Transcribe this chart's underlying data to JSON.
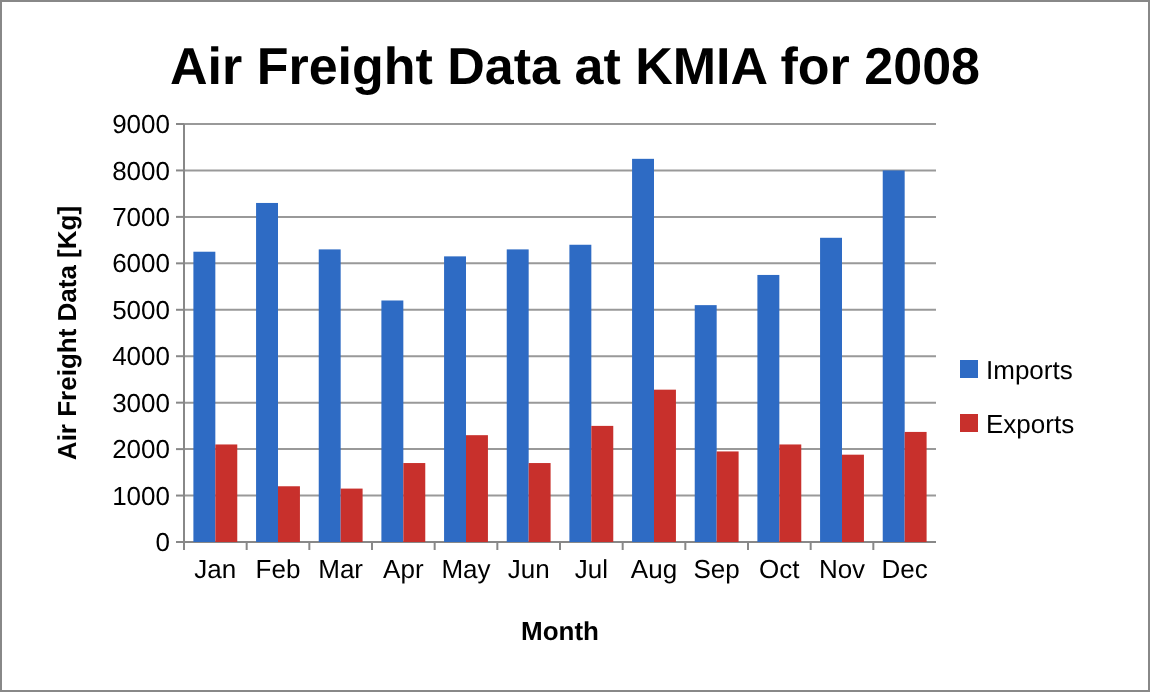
{
  "chart_data": {
    "type": "bar",
    "title": "Air Freight Data at KMIA for 2008",
    "xlabel": "Month",
    "ylabel": "Air Freight Data [Kg]",
    "categories": [
      "Jan",
      "Feb",
      "Mar",
      "Apr",
      "May",
      "Jun",
      "Jul",
      "Aug",
      "Sep",
      "Oct",
      "Nov",
      "Dec"
    ],
    "series": [
      {
        "name": "Imports",
        "color": "#2e6bc4",
        "values": [
          6250,
          7300,
          6300,
          5200,
          6150,
          6300,
          6400,
          8250,
          5100,
          5750,
          6550,
          8000
        ]
      },
      {
        "name": "Exports",
        "color": "#c8302c",
        "values": [
          2100,
          1200,
          1150,
          1700,
          2300,
          1700,
          2500,
          3280,
          1950,
          2100,
          1880,
          2370
        ]
      }
    ],
    "ylim": [
      0,
      9000
    ],
    "yticks": [
      0,
      1000,
      2000,
      3000,
      4000,
      5000,
      6000,
      7000,
      8000,
      9000
    ],
    "grid": "y",
    "legend": "right"
  }
}
